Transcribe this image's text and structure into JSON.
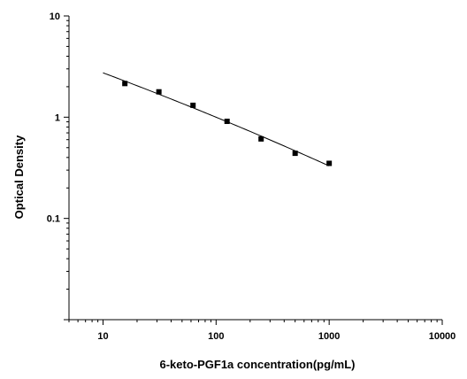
{
  "chart_data": {
    "type": "scatter",
    "title": "",
    "xlabel": "6-keto-PGF1a concentration(pg/mL)",
    "ylabel": "Optical Density",
    "xscale": "log",
    "yscale": "log",
    "xlim": [
      5,
      10000
    ],
    "ylim": [
      0.01,
      10
    ],
    "x_tick_labels": [
      "10",
      "100",
      "1000",
      "10000"
    ],
    "y_tick_labels": [
      "0.1",
      "1",
      "10"
    ],
    "grid": false,
    "legend": "none",
    "series": [
      {
        "marker": "square",
        "x": [
          15.6,
          31.2,
          62.5,
          125,
          250,
          500,
          1000
        ],
        "y": [
          2.15,
          1.78,
          1.31,
          0.91,
          0.61,
          0.44,
          0.35
        ],
        "fit_curve": true,
        "fit_x_range": [
          10,
          1000
        ]
      }
    ],
    "colors": {
      "axis": "#000000",
      "marker": "#000000",
      "curve": "#000000"
    }
  }
}
